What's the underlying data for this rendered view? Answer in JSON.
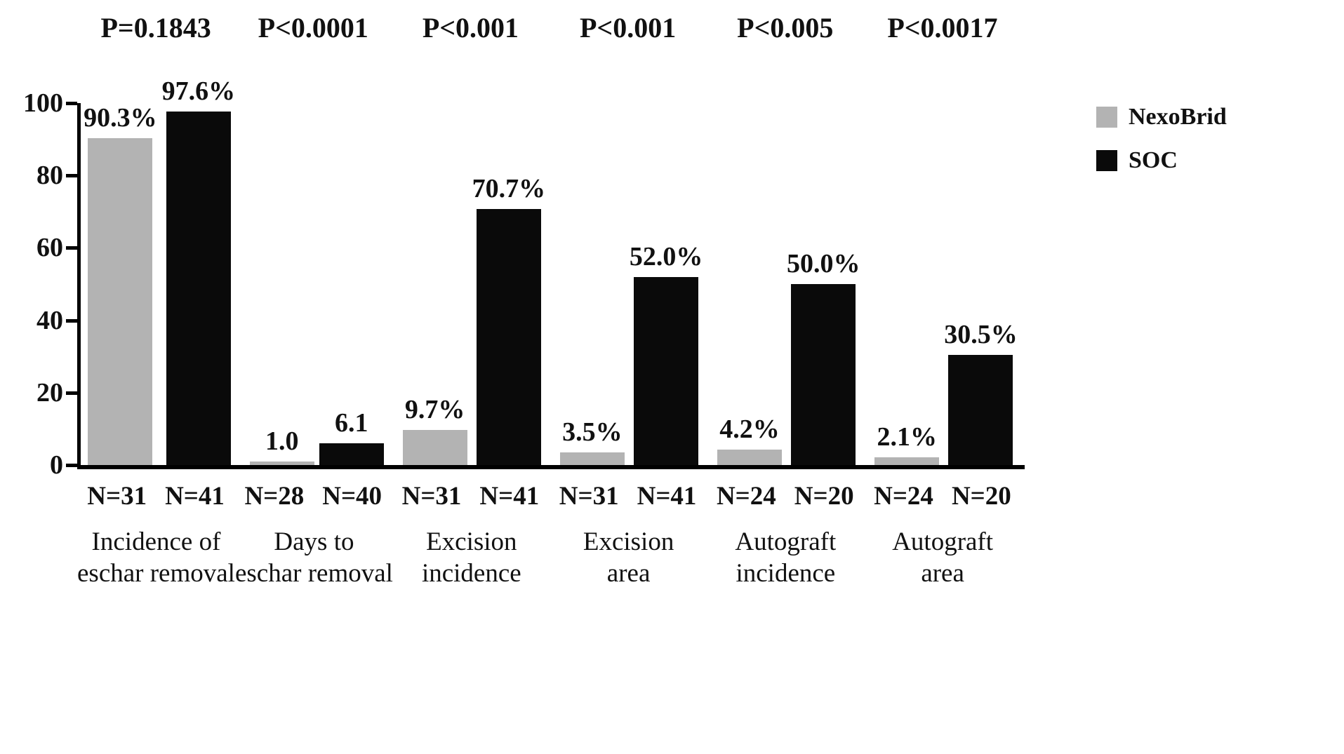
{
  "figure": {
    "background": "#ffffff"
  },
  "chart_data": {
    "type": "bar",
    "title": "",
    "xlabel": "",
    "ylabel": "",
    "ylim": [
      0,
      100
    ],
    "yticks": [
      0,
      20,
      40,
      60,
      80,
      100
    ],
    "grid": false,
    "categories": [
      [
        "Incidence of",
        "eschar removal"
      ],
      [
        "Days to",
        "eschar removal"
      ],
      [
        "Excision",
        "incidence"
      ],
      [
        "Excision",
        "area"
      ],
      [
        "Autograft",
        "incidence"
      ],
      [
        "Autograft",
        "area"
      ]
    ],
    "series": [
      {
        "name": "NexoBrid",
        "color": "#b3b3b3",
        "values": [
          90.3,
          1.0,
          9.7,
          3.5,
          4.2,
          2.1
        ],
        "value_labels": [
          "90.3%",
          "1.0",
          "9.7%",
          "3.5%",
          "4.2%",
          "2.1%"
        ]
      },
      {
        "name": "SOC",
        "color": "#0a0a0a",
        "values": [
          97.6,
          6.1,
          70.7,
          52.0,
          50.0,
          30.5
        ],
        "value_labels": [
          "97.6%",
          "6.1",
          "70.7%",
          "52.0%",
          "50.0%",
          "30.5%"
        ]
      }
    ],
    "p_values": [
      "P=0.1843",
      "P<0.0001",
      "P<0.001",
      "P<0.001",
      "P<0.005",
      "P<0.0017"
    ],
    "n_labels": [
      [
        "N=31",
        "N=41"
      ],
      [
        "N=28",
        "N=40"
      ],
      [
        "N=31",
        "N=41"
      ],
      [
        "N=31",
        "N=41"
      ],
      [
        "N=24",
        "N=20"
      ],
      [
        "N=24",
        "N=20"
      ]
    ],
    "legend": {
      "position": "top-right",
      "entries": [
        "NexoBrid",
        "SOC"
      ]
    }
  }
}
